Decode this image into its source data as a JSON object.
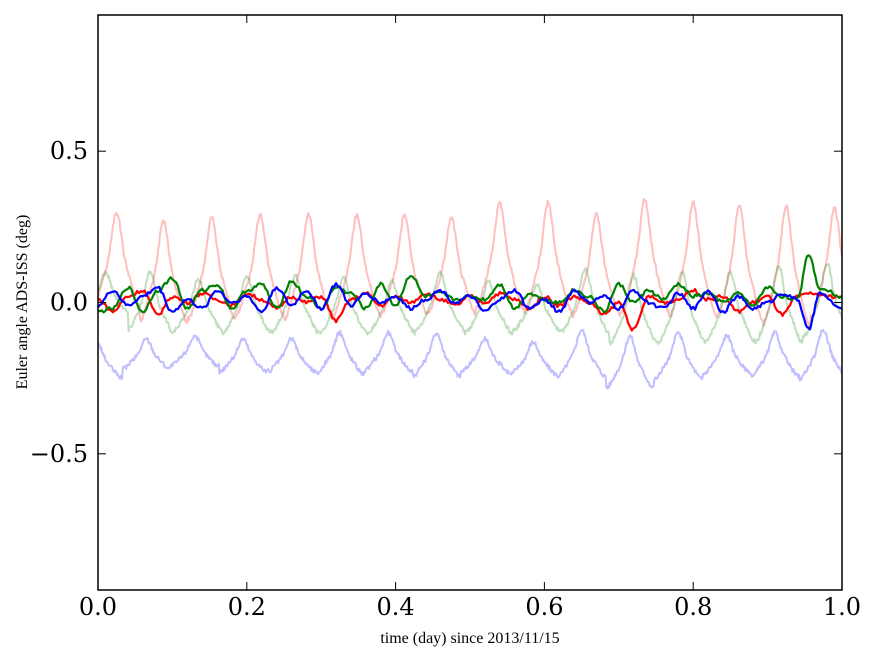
{
  "chart_data": {
    "type": "line",
    "title": "",
    "xlabel": "time (day) since 2013/11/15",
    "ylabel": "Euler angle ADS-ISS (deg)",
    "xlim": [
      0.0,
      1.0
    ],
    "ylim": [
      -0.95,
      0.95
    ],
    "grid": false,
    "legend": "none",
    "x_ticks": [
      {
        "value": 0.0,
        "label": "0.0"
      },
      {
        "value": 0.2,
        "label": "0.2"
      },
      {
        "value": 0.4,
        "label": "0.4"
      },
      {
        "value": 0.6,
        "label": "0.6"
      },
      {
        "value": 0.8,
        "label": "0.8"
      },
      {
        "value": 1.0,
        "label": "1.0"
      }
    ],
    "y_ticks": [
      {
        "value": 0.5,
        "label": "0.5"
      },
      {
        "value": 0.0,
        "label": "0.0"
      },
      {
        "value": -0.5,
        "label": "−0.5"
      }
    ],
    "series": [
      {
        "color": "#ff0000",
        "opacity": 0.25,
        "peak_times": [
          0.025,
          0.088,
          0.153,
          0.218,
          0.283,
          0.348,
          0.412,
          0.475,
          0.54,
          0.605,
          0.67,
          0.735,
          0.8,
          0.862,
          0.925,
          0.99
        ],
        "peak_values": [
          0.3,
          0.27,
          0.28,
          0.29,
          0.29,
          0.29,
          0.29,
          0.28,
          0.33,
          0.33,
          0.29,
          0.34,
          0.33,
          0.32,
          0.32,
          0.31
        ],
        "baseline": 0.0,
        "trough_values": [
          -0.05,
          -0.1,
          -0.09,
          -0.08,
          -0.09,
          -0.08,
          -0.08,
          -0.07,
          -0.06,
          -0.07,
          -0.08,
          -0.07,
          -0.09,
          -0.1,
          -0.12,
          -0.09
        ]
      },
      {
        "color": "#008000",
        "opacity": 0.25,
        "peak_times": [
          0.01,
          0.07,
          0.135,
          0.2,
          0.265,
          0.33,
          0.395,
          0.46,
          0.525,
          0.59,
          0.655,
          0.72,
          0.785,
          0.85,
          0.915,
          0.98
        ],
        "peak_values": [
          0.1,
          0.1,
          0.08,
          0.09,
          0.09,
          0.08,
          0.07,
          0.1,
          0.07,
          0.06,
          0.11,
          0.09,
          0.1,
          0.1,
          0.12,
          0.13
        ],
        "trough_values": [
          -0.05,
          -0.12,
          -0.11,
          -0.12,
          -0.12,
          -0.12,
          -0.12,
          -0.11,
          -0.12,
          -0.11,
          -0.12,
          -0.16,
          -0.16,
          -0.15,
          -0.16,
          -0.14
        ]
      },
      {
        "color": "#0000ff",
        "opacity": 0.25,
        "peak_times": [
          0.0,
          0.065,
          0.13,
          0.195,
          0.26,
          0.325,
          0.39,
          0.455,
          0.52,
          0.585,
          0.65,
          0.715,
          0.78,
          0.845,
          0.91,
          0.975
        ],
        "peak_values": [
          -0.14,
          -0.12,
          -0.11,
          -0.12,
          -0.12,
          -0.1,
          -0.1,
          -0.1,
          -0.12,
          -0.13,
          -0.09,
          -0.11,
          -0.1,
          -0.11,
          -0.1,
          -0.09
        ],
        "trough_values": [
          -0.26,
          -0.23,
          -0.22,
          -0.24,
          -0.24,
          -0.25,
          -0.24,
          -0.26,
          -0.24,
          -0.25,
          -0.26,
          -0.3,
          -0.27,
          -0.25,
          -0.26,
          -0.27
        ]
      },
      {
        "color": "#ff0000",
        "opacity": 1.0,
        "x": [
          0.0,
          0.02,
          0.04,
          0.06,
          0.08,
          0.1,
          0.12,
          0.14,
          0.16,
          0.18,
          0.2,
          0.22,
          0.24,
          0.26,
          0.28,
          0.3,
          0.32,
          0.34,
          0.36,
          0.38,
          0.4,
          0.42,
          0.44,
          0.46,
          0.48,
          0.5,
          0.52,
          0.54,
          0.56,
          0.58,
          0.6,
          0.62,
          0.64,
          0.66,
          0.68,
          0.7,
          0.72,
          0.74,
          0.76,
          0.78,
          0.8,
          0.82,
          0.84,
          0.86,
          0.88,
          0.9,
          0.92,
          0.94,
          0.96,
          0.98,
          1.0
        ],
        "y": [
          0.01,
          -0.03,
          0.02,
          0.04,
          -0.04,
          0.02,
          0.0,
          0.03,
          0.01,
          -0.01,
          0.03,
          0.01,
          -0.02,
          0.02,
          0.0,
          0.02,
          -0.06,
          0.01,
          0.03,
          -0.01,
          0.02,
          0.0,
          0.03,
          0.01,
          -0.01,
          0.02,
          0.0,
          0.03,
          0.01,
          -0.02,
          0.02,
          -0.01,
          0.02,
          0.0,
          -0.04,
          0.0,
          -0.09,
          0.02,
          0.0,
          0.01,
          0.04,
          0.01,
          0.02,
          -0.03,
          0.0,
          0.02,
          -0.04,
          0.02,
          0.03,
          0.02,
          0.02
        ]
      },
      {
        "color": "#008000",
        "opacity": 1.0,
        "x": [
          0.0,
          0.02,
          0.04,
          0.06,
          0.08,
          0.1,
          0.12,
          0.14,
          0.16,
          0.18,
          0.2,
          0.22,
          0.24,
          0.26,
          0.28,
          0.3,
          0.32,
          0.34,
          0.36,
          0.38,
          0.4,
          0.42,
          0.44,
          0.46,
          0.48,
          0.5,
          0.52,
          0.54,
          0.56,
          0.58,
          0.6,
          0.62,
          0.64,
          0.66,
          0.68,
          0.7,
          0.72,
          0.74,
          0.76,
          0.78,
          0.8,
          0.82,
          0.84,
          0.86,
          0.88,
          0.9,
          0.92,
          0.94,
          0.955,
          0.97,
          1.0
        ],
        "y": [
          -0.03,
          -0.02,
          0.05,
          -0.03,
          0.04,
          0.08,
          -0.02,
          0.04,
          0.06,
          -0.02,
          0.04,
          0.06,
          -0.02,
          0.07,
          0.02,
          -0.02,
          0.05,
          0.03,
          -0.02,
          0.06,
          -0.01,
          0.09,
          0.02,
          0.03,
          0.01,
          0.02,
          0.01,
          0.06,
          -0.02,
          0.03,
          0.01,
          0.0,
          0.04,
          0.02,
          -0.03,
          0.06,
          0.0,
          0.04,
          0.01,
          0.06,
          0.02,
          0.03,
          0.0,
          0.03,
          -0.01,
          0.05,
          0.02,
          0.01,
          0.16,
          0.05,
          0.02
        ]
      },
      {
        "color": "#0000ff",
        "opacity": 1.0,
        "x": [
          0.0,
          0.02,
          0.04,
          0.06,
          0.08,
          0.1,
          0.12,
          0.14,
          0.16,
          0.18,
          0.2,
          0.22,
          0.24,
          0.26,
          0.28,
          0.3,
          0.32,
          0.34,
          0.36,
          0.38,
          0.4,
          0.42,
          0.44,
          0.46,
          0.48,
          0.5,
          0.52,
          0.54,
          0.56,
          0.58,
          0.6,
          0.62,
          0.64,
          0.66,
          0.68,
          0.7,
          0.72,
          0.74,
          0.76,
          0.78,
          0.8,
          0.82,
          0.84,
          0.86,
          0.88,
          0.9,
          0.92,
          0.94,
          0.955,
          0.97,
          1.0
        ],
        "y": [
          -0.01,
          0.04,
          -0.01,
          0.02,
          0.05,
          -0.03,
          0.01,
          -0.02,
          0.04,
          0.0,
          0.02,
          -0.03,
          0.05,
          -0.01,
          0.04,
          -0.02,
          0.06,
          -0.01,
          0.03,
          0.0,
          0.02,
          -0.02,
          0.01,
          0.04,
          0.0,
          0.02,
          -0.03,
          0.01,
          0.04,
          -0.02,
          0.01,
          -0.03,
          0.04,
          0.0,
          0.02,
          -0.02,
          0.04,
          0.0,
          -0.02,
          0.03,
          -0.02,
          0.04,
          -0.03,
          0.02,
          -0.02,
          0.0,
          0.03,
          0.01,
          -0.09,
          0.03,
          -0.02
        ]
      }
    ]
  }
}
